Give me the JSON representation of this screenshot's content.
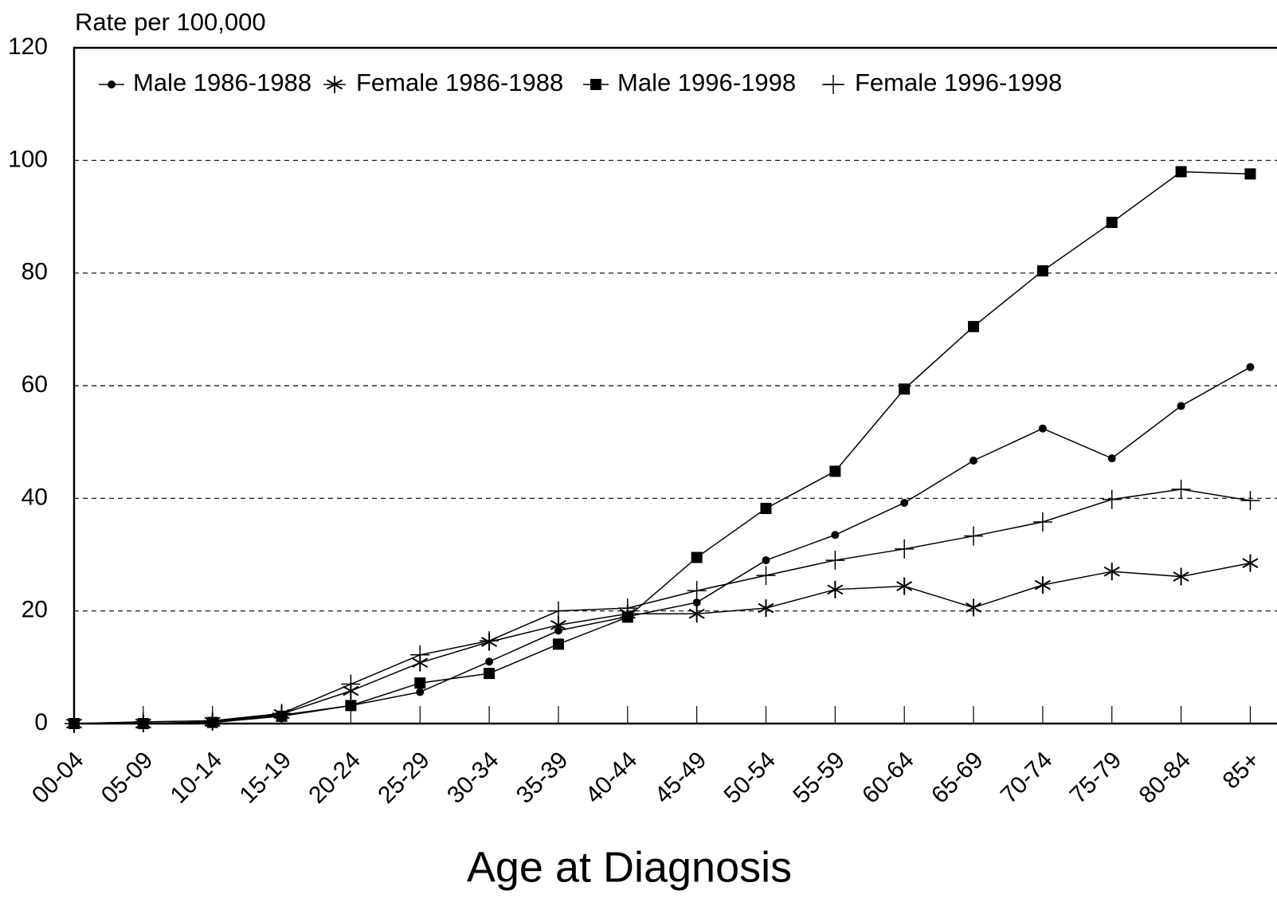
{
  "chart_data": {
    "type": "line",
    "y_axis_label": "Rate per 100,000",
    "x_axis_label": "Age at Diagnosis",
    "categories": [
      "00-04",
      "05-09",
      "10-14",
      "15-19",
      "20-24",
      "25-29",
      "30-34",
      "35-39",
      "40-44",
      "45-49",
      "50-54",
      "55-59",
      "60-64",
      "65-69",
      "70-74",
      "75-79",
      "80-84",
      "85+"
    ],
    "series": [
      {
        "name": "Male 1986-1988",
        "color": "#000000",
        "marker": "circle",
        "values": [
          0,
          0,
          0.3,
          1.5,
          3.2,
          5.6,
          11,
          16.5,
          19,
          21.5,
          29,
          33.5,
          39.2,
          46.7,
          52.4,
          47.1,
          56.4,
          63.3
        ]
      },
      {
        "name": "Female 1986-1988",
        "color": "#000000",
        "marker": "star",
        "values": [
          0,
          0,
          0.3,
          1.7,
          5.8,
          10.8,
          14.5,
          17.5,
          19.5,
          19.5,
          20.5,
          23.8,
          24.4,
          20.6,
          24.6,
          27,
          26.1,
          28.5
        ]
      },
      {
        "name": "Male 1996-1998",
        "color": "#000000",
        "marker": "square",
        "values": [
          0,
          0,
          0.2,
          1.3,
          3.2,
          7.2,
          8.9,
          14.1,
          18.9,
          29.5,
          38.2,
          44.8,
          59.4,
          70.5,
          80.4,
          89,
          98,
          97.6
        ]
      },
      {
        "name": "Female 1996-1998",
        "color": "#000000",
        "marker": "plus",
        "values": [
          0,
          0.3,
          0.5,
          1.8,
          7,
          12.2,
          14.7,
          20,
          20.5,
          23.6,
          26.3,
          29,
          31,
          33.3,
          35.8,
          39.8,
          41.6,
          39.6
        ]
      }
    ],
    "ylim": [
      0,
      120
    ],
    "yticks": [
      0,
      20,
      40,
      60,
      80,
      100,
      120
    ],
    "grid": true,
    "legend": "top-left"
  }
}
